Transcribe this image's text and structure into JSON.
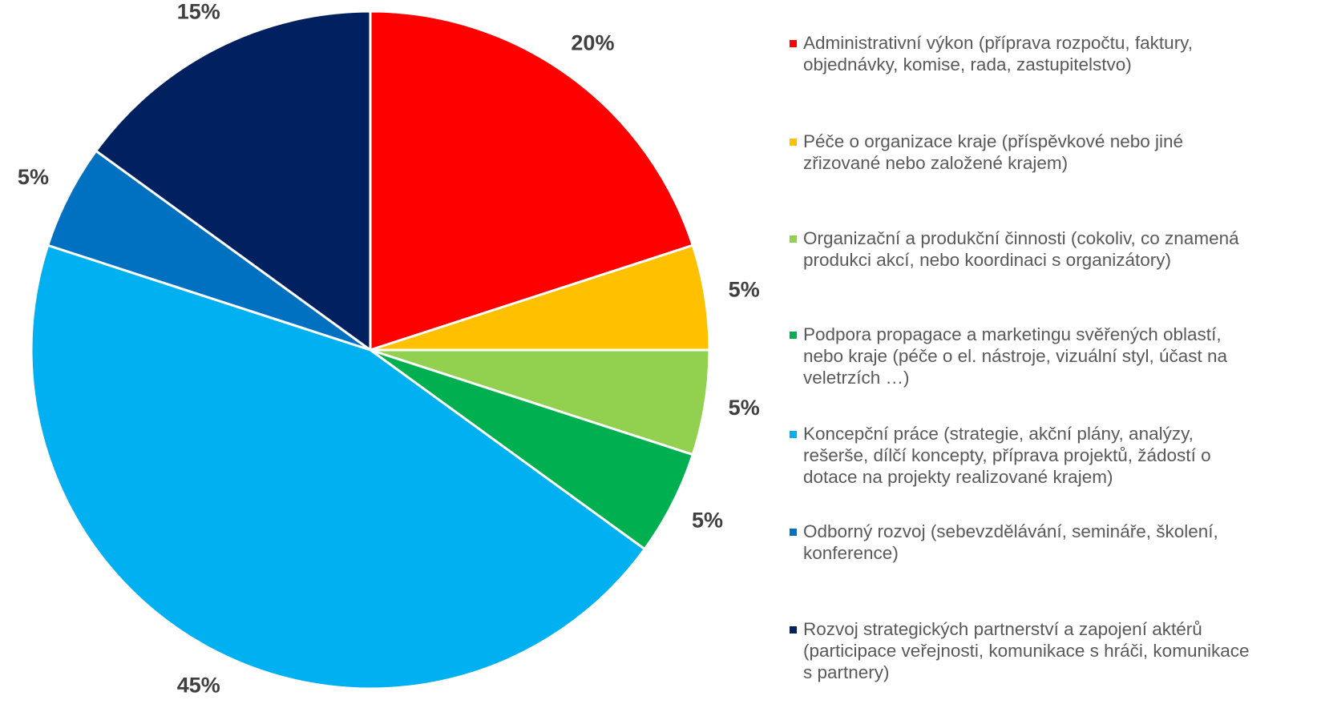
{
  "chart_data": {
    "type": "pie",
    "categories": [
      "Administrativní výkon (příprava rozpočtu, faktury, objednávky, komise, rada, zastupitelstvo)",
      "Péče o organizace kraje (příspěvkové nebo jiné zřizované nebo založené krajem)",
      "Organizační a produkční činnosti (cokoliv, co znamená produkci akcí, nebo koordinaci s organizátory)",
      "Podpora propagace a marketingu svěřených oblastí, nebo kraje (péče o el. nástroje, vizuální styl, účast na veletrzích …)",
      "Koncepční práce (strategie, akční plány, analýzy, rešerše, dílčí koncepty, příprava projektů, žádostí o dotace na projekty realizované krajem)",
      "Odborný rozvoj (sebevzdělávání, semináře, školení, konference)",
      "Rozvoj strategických partnerství a zapojení aktérů (participace veřejnosti, komunikace s hráči, komunikace s partnery)"
    ],
    "values": [
      20,
      5,
      5,
      5,
      45,
      5,
      15
    ],
    "value_labels": [
      "20%",
      "5%",
      "5%",
      "5%",
      "45%",
      "5%",
      "15%"
    ],
    "colors": [
      "#ff0000",
      "#ffc000",
      "#92d050",
      "#00b050",
      "#00b0f0",
      "#0070c0",
      "#002060"
    ],
    "legend": "right"
  }
}
